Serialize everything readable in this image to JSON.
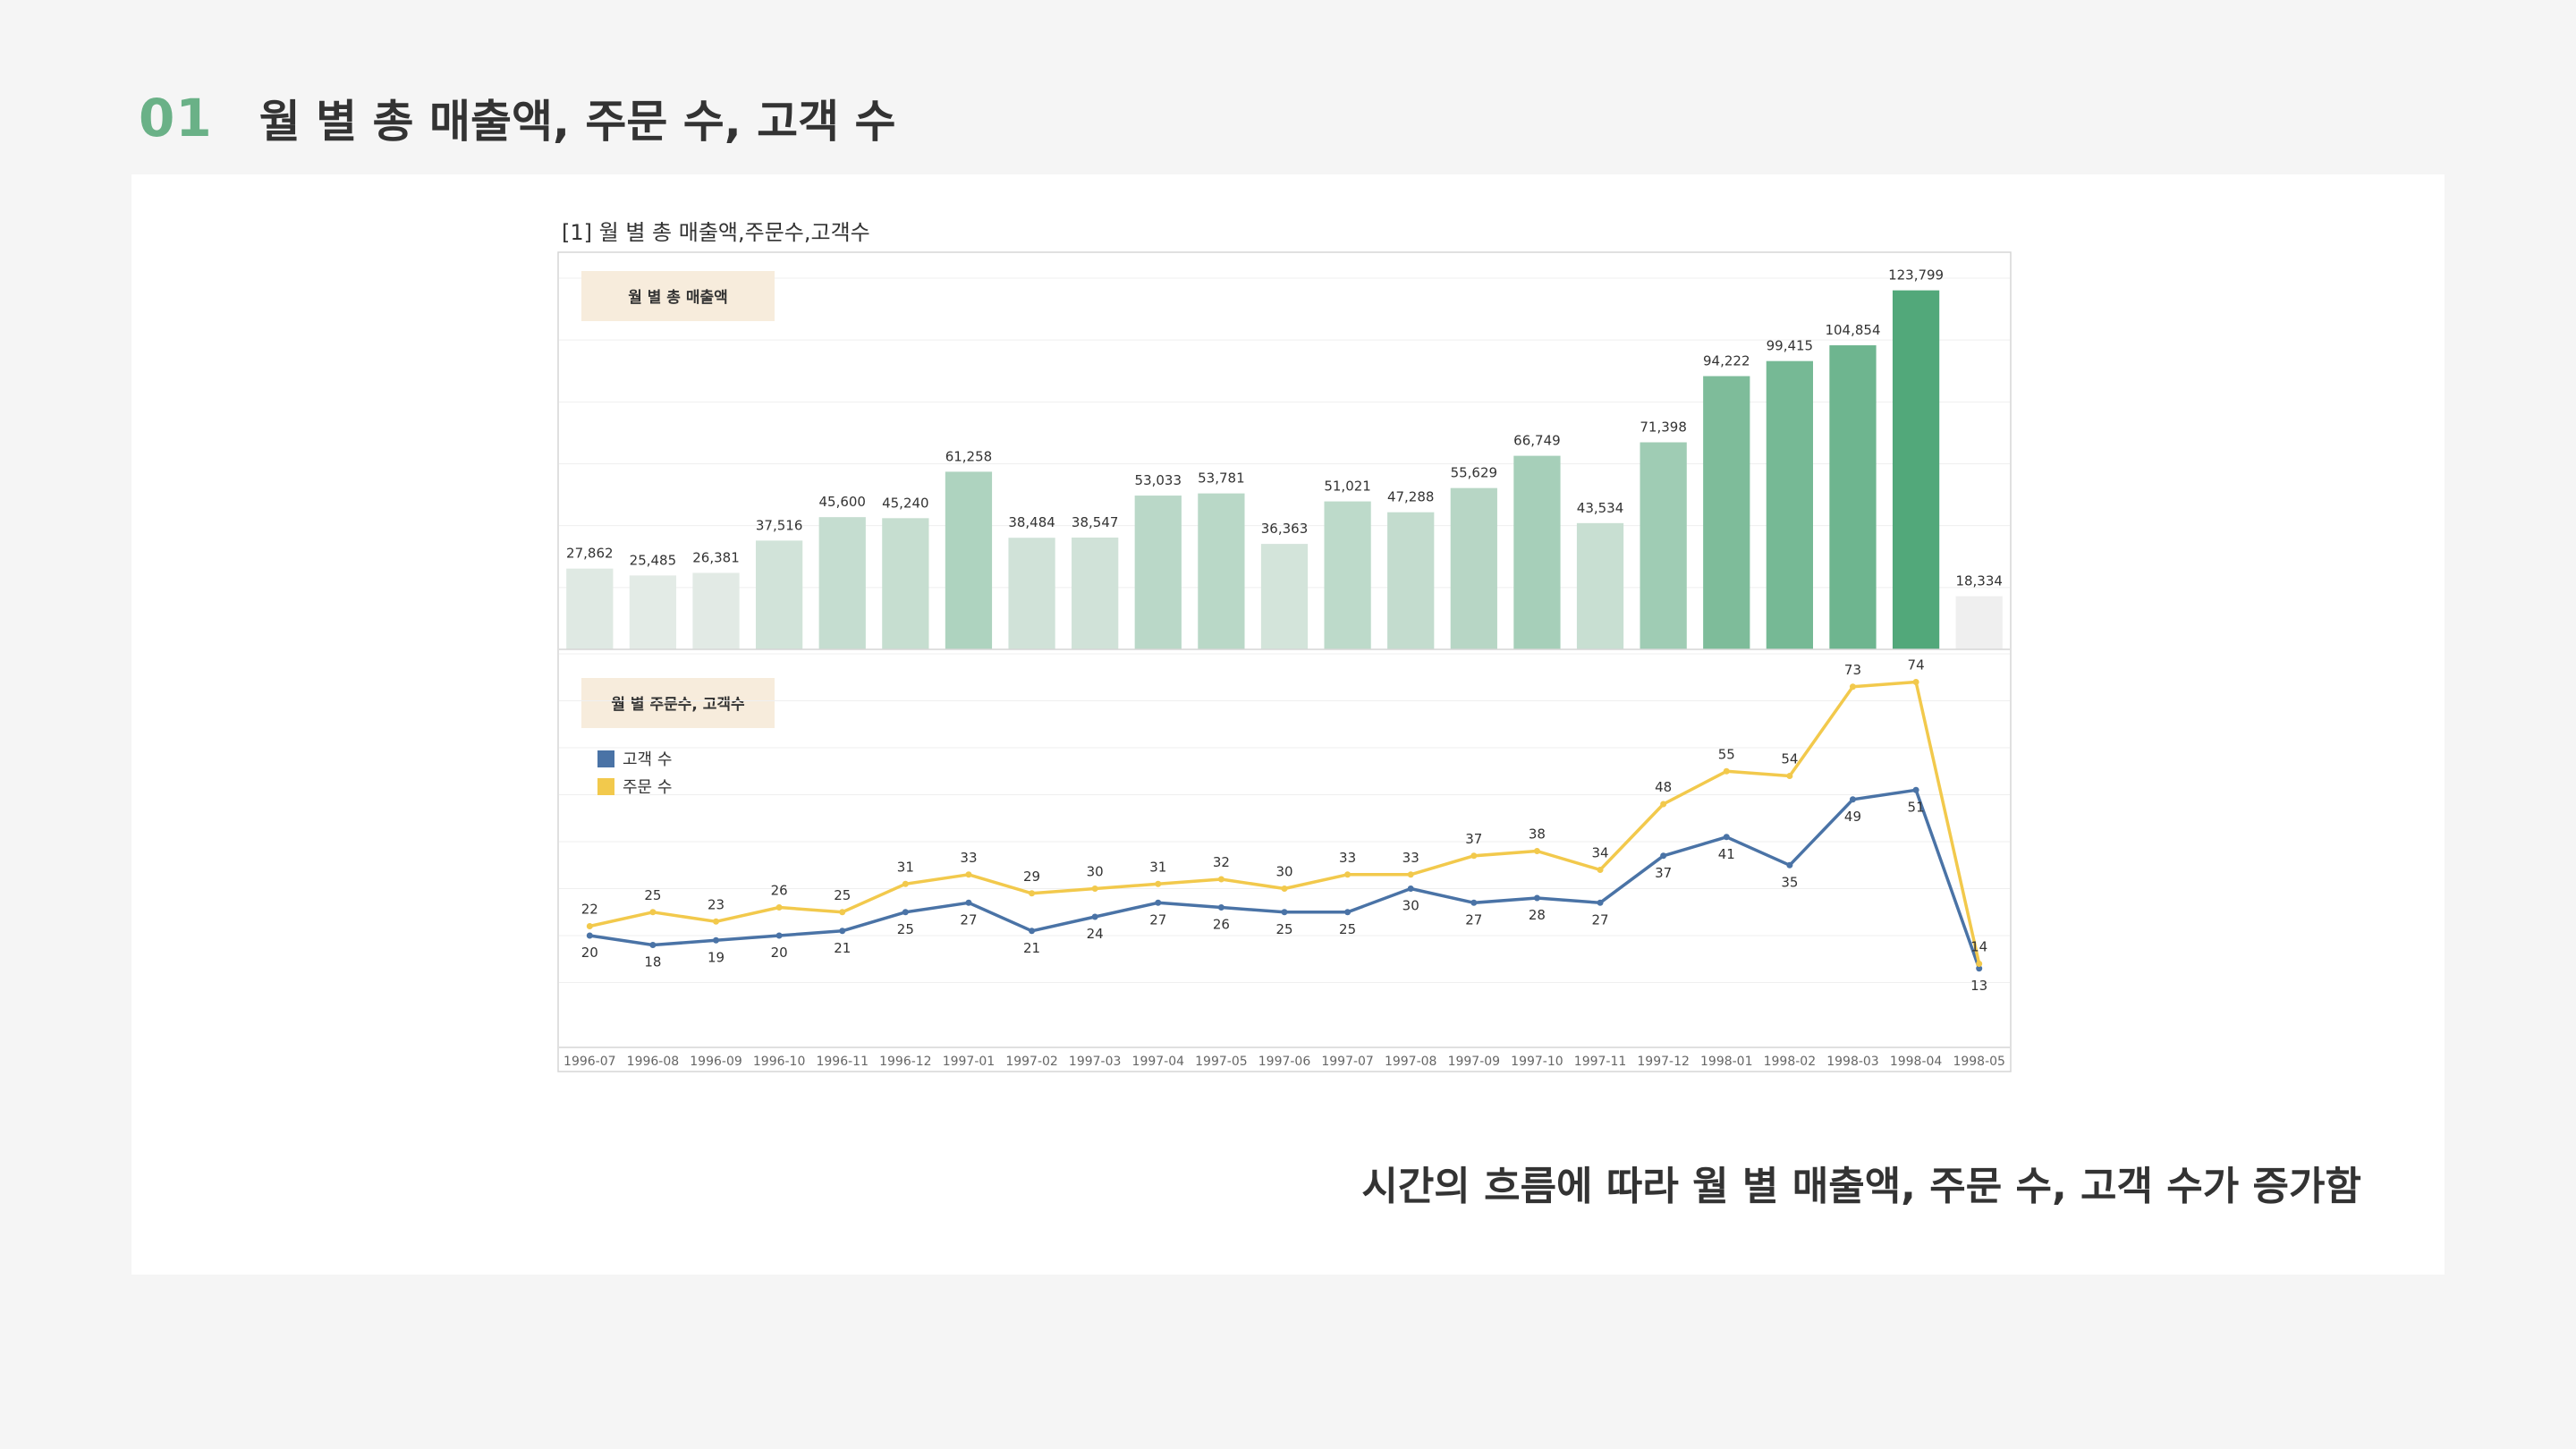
{
  "heading": {
    "number": "01",
    "title": "월 별 총 매출액, 주문 수, 고객 수"
  },
  "summary": "시간의 흐름에 따라 월 별 매출액, 주문 수, 고객 수가 증가함",
  "colors": {
    "accent": "#6ab187",
    "bar_dark": "#52a87a",
    "bar_light": "#e3ebe6",
    "bar_partial": "#efefef",
    "orders_line": "#f2c94c",
    "customers_line": "#4a73a6",
    "panel_label_bg": "#f7ecdc"
  },
  "chart_data": {
    "caption": "[1] 월 별 총 매출액,주문수,고객수",
    "categories": [
      "1996-07",
      "1996-08",
      "1996-09",
      "1996-10",
      "1996-11",
      "1996-12",
      "1997-01",
      "1997-02",
      "1997-03",
      "1997-04",
      "1997-05",
      "1997-06",
      "1997-07",
      "1997-08",
      "1997-09",
      "1997-10",
      "1997-11",
      "1997-12",
      "1998-01",
      "1998-02",
      "1998-03",
      "1998-04",
      "1998-05"
    ],
    "charts": [
      {
        "type": "bar",
        "title": "월 별 총 매출액",
        "values": [
          27862,
          25485,
          26381,
          37516,
          45600,
          45240,
          61258,
          38484,
          38547,
          53033,
          53781,
          36363,
          51021,
          47288,
          55629,
          66749,
          43534,
          71398,
          94222,
          99415,
          104854,
          123799,
          18334
        ],
        "value_labels": [
          "27,862",
          "25,485",
          "26,381",
          "37,516",
          "45,600",
          "45,240",
          "61,258",
          "38,484",
          "38,547",
          "53,033",
          "53,781",
          "36,363",
          "51,021",
          "47,288",
          "55,629",
          "66,749",
          "43,534",
          "71,398",
          "94,222",
          "99,415",
          "104,854",
          "123,799",
          "18,334"
        ],
        "ylim": [
          0,
          128000
        ]
      },
      {
        "type": "line",
        "title": "월 별 주문수, 고객수",
        "legend_position": "top-left",
        "ylim": [
          0,
          80
        ],
        "series": [
          {
            "name": "고객 수",
            "color": "#4a73a6",
            "values": [
              20,
              18,
              19,
              20,
              21,
              25,
              27,
              21,
              24,
              27,
              26,
              25,
              25,
              30,
              27,
              28,
              27,
              37,
              41,
              35,
              49,
              51,
              13
            ]
          },
          {
            "name": "주문 수",
            "color": "#f2c94c",
            "values": [
              22,
              25,
              23,
              26,
              25,
              31,
              33,
              29,
              30,
              31,
              32,
              30,
              33,
              33,
              37,
              38,
              34,
              48,
              55,
              54,
              73,
              74,
              14
            ]
          }
        ]
      }
    ]
  }
}
